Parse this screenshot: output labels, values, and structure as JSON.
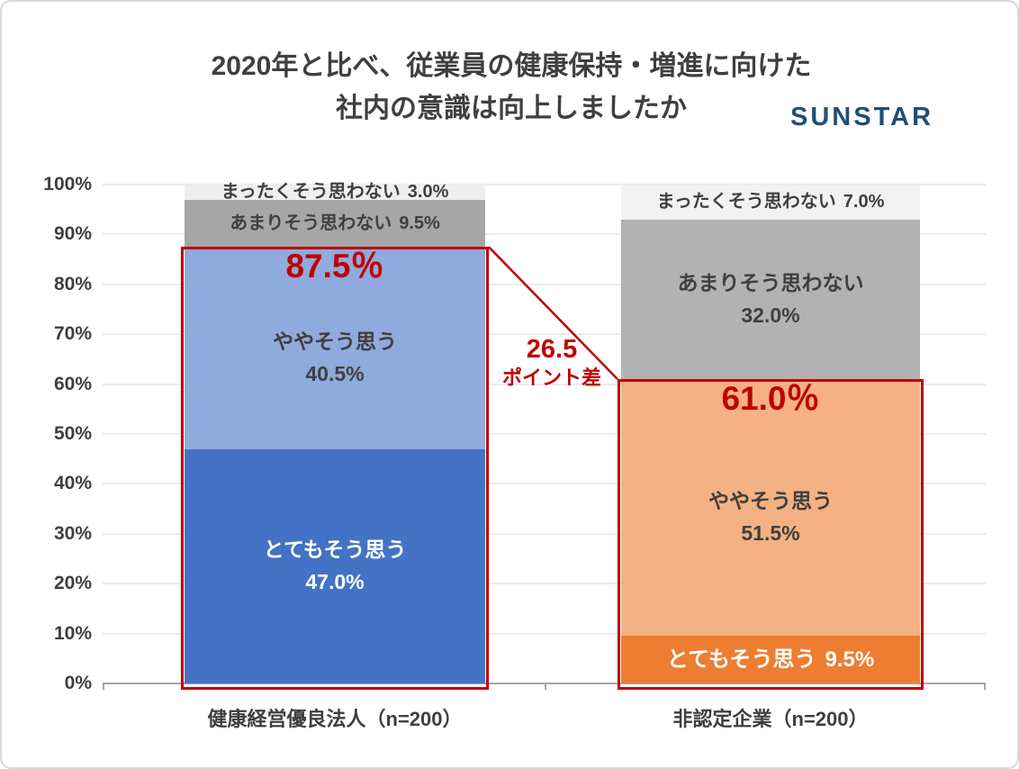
{
  "title": {
    "line1": "2020年と比べ、従業員の健康保持・増進に向けた",
    "line2": "社内の意識は向上しましたか"
  },
  "logo": {
    "text": "SUNSTAR",
    "color": "#1f4e79"
  },
  "chart_data": {
    "type": "bar",
    "stacked": true,
    "title": "2020年と比べ、従業員の健康保持・増進に向けた社内の意識は向上しましたか",
    "ylim": [
      0,
      100
    ],
    "grid": true,
    "yticks": [
      "100%",
      "90%",
      "80%",
      "70%",
      "60%",
      "50%",
      "40%",
      "30%",
      "20%",
      "10%",
      "0%"
    ],
    "categories": [
      "健康経営優良法人（n=200）",
      "非認定企業（n=200）"
    ],
    "bars": [
      {
        "category": "健康経営優良法人（n=200）",
        "highlight": {
          "total": 87.5,
          "label": "87.5％"
        },
        "segments": [
          {
            "label": "とてもそう思う",
            "value": 47.0,
            "value_label": "47.0%",
            "color": "#4472c4",
            "text": "#ffffff"
          },
          {
            "label": "ややそう思う",
            "value": 40.5,
            "value_label": "40.5%",
            "color": "#8faadc",
            "text": "#3f3f3f"
          },
          {
            "label": "あまりそう思わない",
            "value": 9.5,
            "value_label": "9.5%",
            "color": "#a6a6a6",
            "text": "#3f3f3f"
          },
          {
            "label": "まったくそう思わない",
            "value": 3.0,
            "value_label": "3.0%",
            "color": "#efefef",
            "text": "#3f3f3f"
          }
        ]
      },
      {
        "category": "非認定企業（n=200）",
        "highlight": {
          "total": 61.0,
          "label": "61.0％"
        },
        "segments": [
          {
            "label": "とてもそう思う",
            "value": 9.5,
            "value_label": "9.5%",
            "color": "#ed7d31",
            "text": "#ffffff"
          },
          {
            "label": "ややそう思う",
            "value": 51.5,
            "value_label": "51.5%",
            "color": "#f4b183",
            "text": "#3f3f3f"
          },
          {
            "label": "あまりそう思わない",
            "value": 32.0,
            "value_label": "32.0%",
            "color": "#b2b2b2",
            "text": "#3f3f3f"
          },
          {
            "label": "まったくそう思わない",
            "value": 7.0,
            "value_label": "7.0%",
            "color": "#f2f2f2",
            "text": "#3f3f3f"
          }
        ]
      }
    ],
    "difference": {
      "value": 26.5,
      "value_label": "26.5",
      "suffix": "ポイント差",
      "color": "#c00000"
    },
    "highlight_color": "#c00000"
  }
}
